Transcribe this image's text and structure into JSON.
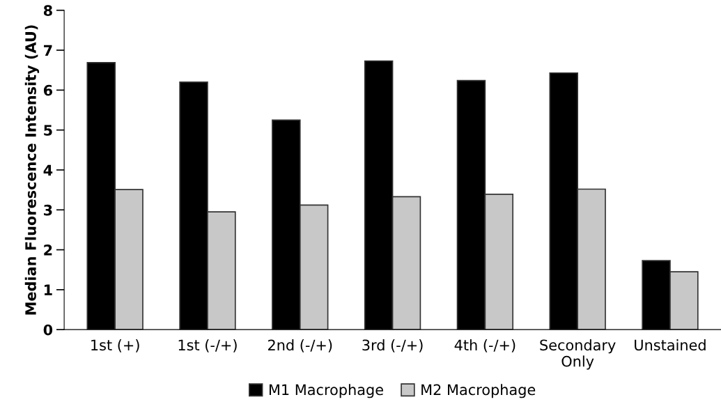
{
  "chart_data": {
    "type": "bar",
    "ylabel": "Median Fluorescence Intensity (AU)",
    "categories": [
      "1st (+)",
      "1st (-/+)",
      "2nd (-/+)",
      "3rd (-/+)",
      "4th (-/+)",
      "Secondary\nOnly",
      "Unstained"
    ],
    "series": [
      {
        "name": "M1 Macrophage",
        "color": "#000000",
        "values": [
          6.69,
          6.2,
          5.25,
          6.73,
          6.24,
          6.43,
          1.73
        ]
      },
      {
        "name": "M2 Macrophage",
        "color": "#c8c8c8",
        "values": [
          3.51,
          2.95,
          3.12,
          3.33,
          3.39,
          3.52,
          1.45
        ]
      }
    ],
    "ylim": [
      0,
      8
    ],
    "yticks": [
      0,
      1,
      2,
      3,
      4,
      5,
      6,
      7,
      8
    ],
    "grid": false,
    "legend": "bottom"
  }
}
